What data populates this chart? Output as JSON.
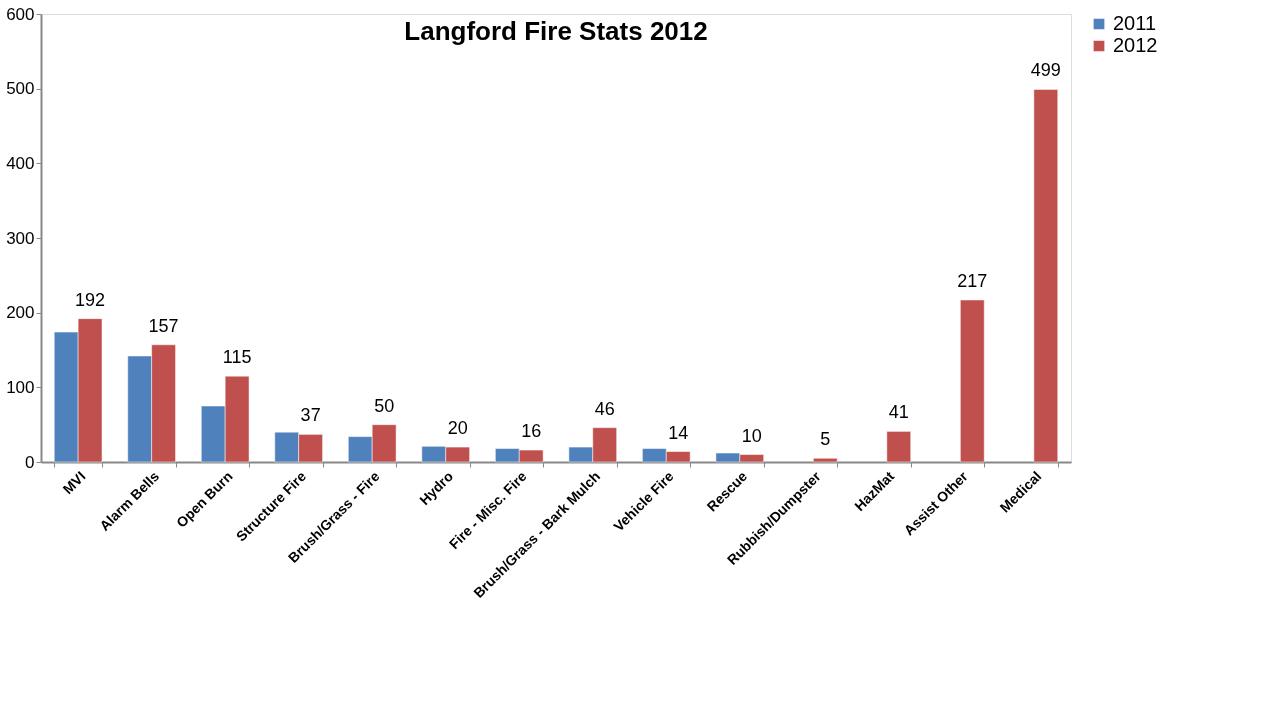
{
  "chart_data": {
    "type": "bar",
    "title": "Langford Fire Stats 2012",
    "categories": [
      "MVI",
      "Alarm Bells",
      "Open Burn",
      "Structure Fire",
      "Brush/Grass - Fire",
      "Hydro",
      "Fire - Misc. Fire",
      "Brush/Grass - Bark Mulch",
      "Vehicle Fire",
      "Rescue",
      "Rubbish/Dumpster",
      "HazMat",
      "Assist Other",
      "Medical"
    ],
    "series": [
      {
        "name": "2011",
        "color": "#4f81bd",
        "values": [
          174,
          142,
          75,
          40,
          34,
          21,
          18,
          20,
          18,
          12,
          null,
          null,
          null,
          null
        ]
      },
      {
        "name": "2012",
        "color": "#c0504d",
        "values": [
          192,
          157,
          115,
          37,
          50,
          20,
          16,
          46,
          14,
          10,
          5,
          41,
          217,
          499
        ],
        "value_labels": [
          "192",
          "157",
          "115",
          "37",
          "50",
          "20",
          "16",
          "46",
          "14",
          "10",
          "5",
          "41",
          "217",
          "499"
        ]
      }
    ],
    "ylim": [
      0,
      600
    ],
    "yticks": [
      0,
      100,
      200,
      300,
      400,
      500,
      600
    ],
    "grid": false,
    "legend": "right"
  }
}
